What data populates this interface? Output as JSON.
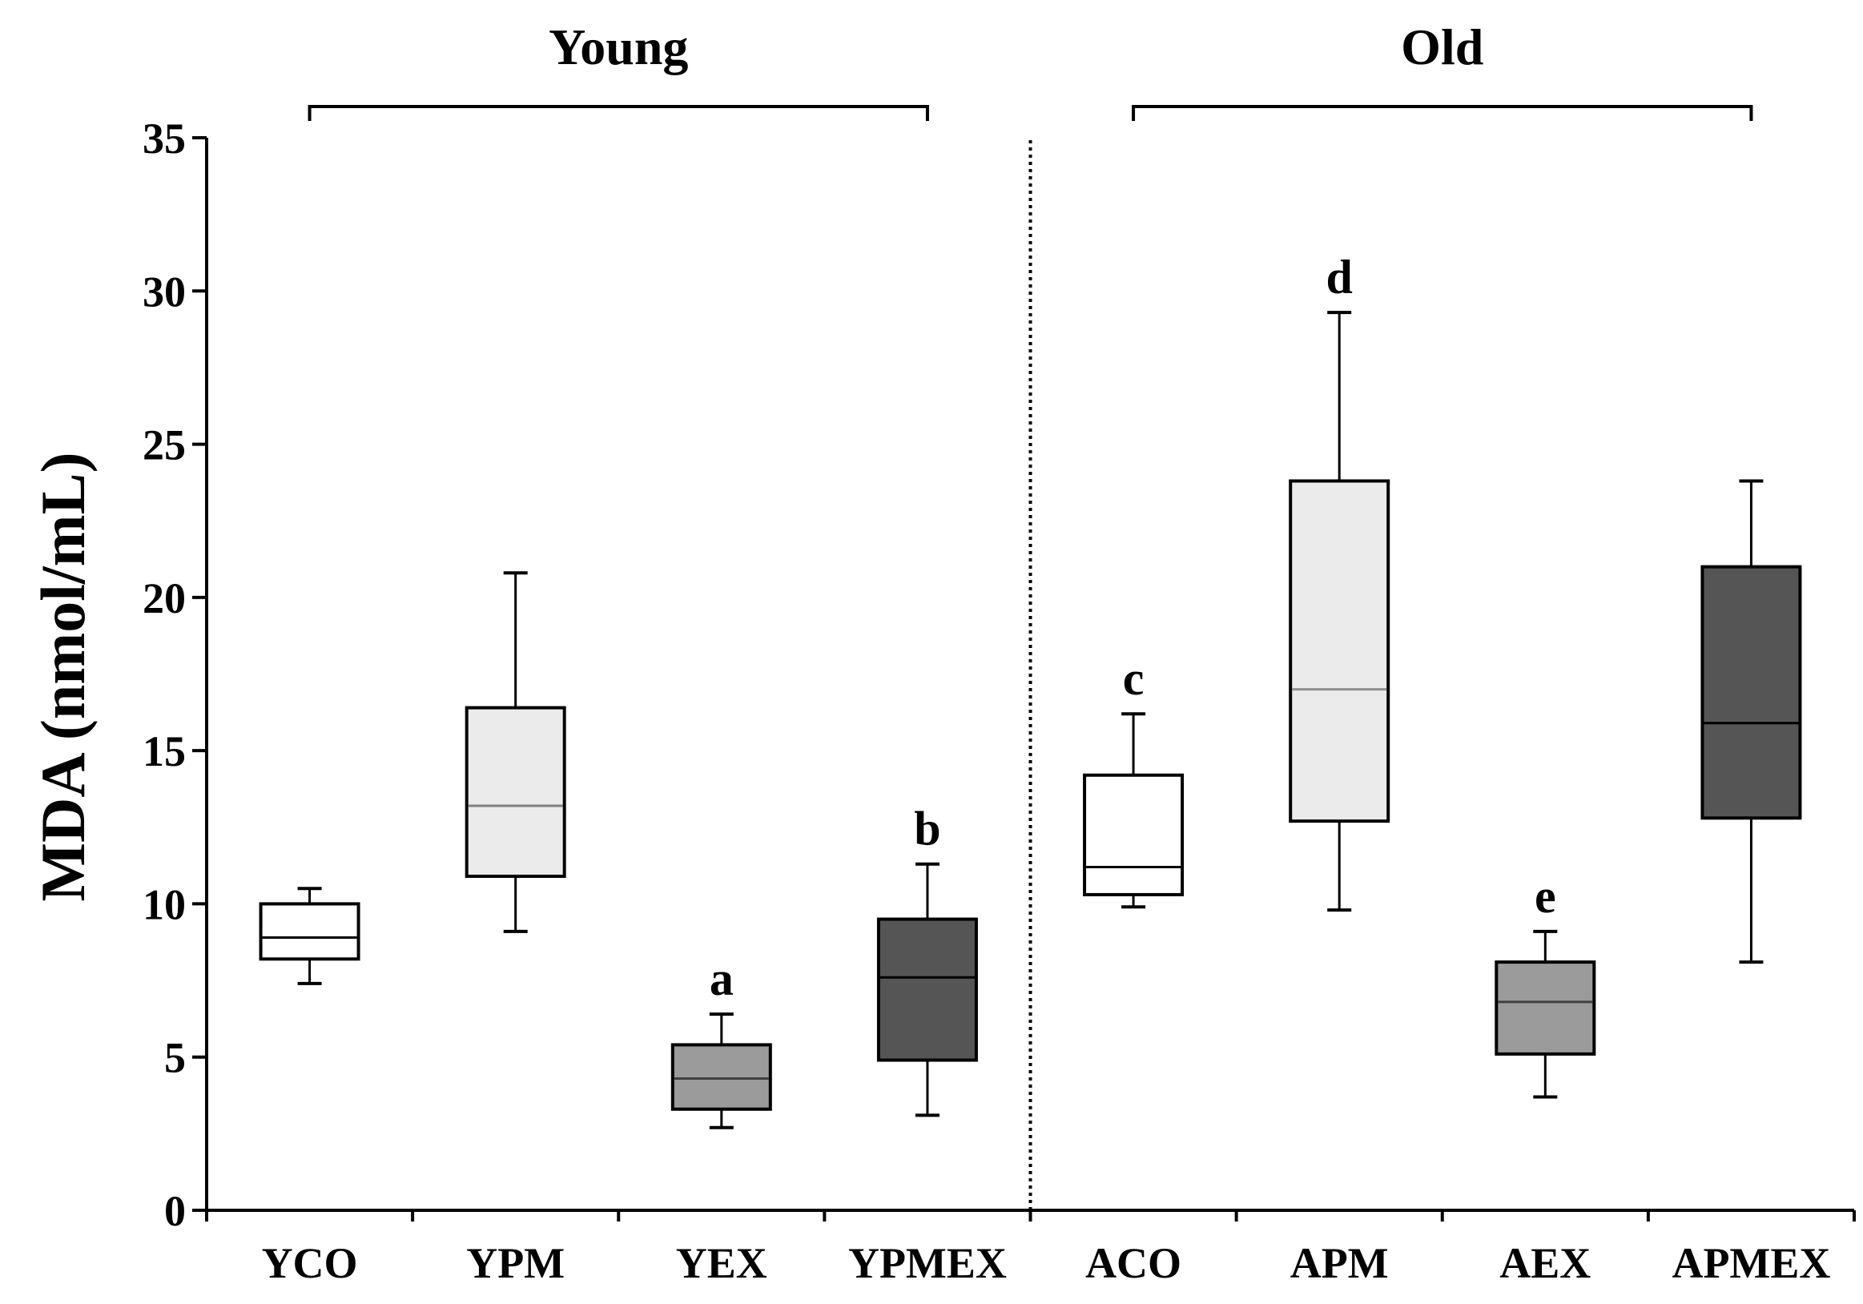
{
  "chart_data": {
    "type": "box",
    "ylabel": "MDA (nmol/mL)",
    "ylim": [
      0,
      35
    ],
    "yticks": [
      0,
      5,
      10,
      15,
      20,
      25,
      30,
      35
    ],
    "groups": [
      {
        "label": "Young",
        "from": 0,
        "to": 3
      },
      {
        "label": "Old",
        "from": 4,
        "to": 7
      }
    ],
    "categories": [
      "YCO",
      "YPM",
      "YEX",
      "YPMEX",
      "ACO",
      "APM",
      "AEX",
      "APMEX"
    ],
    "boxes": [
      {
        "category": "YCO",
        "min": 7.4,
        "q1": 8.2,
        "median": 8.9,
        "q3": 10.0,
        "max": 10.5,
        "fill": "#ffffff",
        "median_color": "#000000",
        "letter": ""
      },
      {
        "category": "YPM",
        "min": 9.1,
        "q1": 10.9,
        "median": 13.2,
        "q3": 16.4,
        "max": 20.8,
        "fill": "#ebebeb",
        "median_color": "#808080",
        "letter": ""
      },
      {
        "category": "YEX",
        "min": 2.7,
        "q1": 3.3,
        "median": 4.3,
        "q3": 5.4,
        "max": 6.4,
        "fill": "#9b9b9b",
        "median_color": "#404040",
        "letter": "a"
      },
      {
        "category": "YPMEX",
        "min": 3.1,
        "q1": 4.9,
        "median": 7.6,
        "q3": 9.5,
        "max": 11.3,
        "fill": "#555555",
        "median_color": "#000000",
        "letter": "b"
      },
      {
        "category": "ACO",
        "min": 9.9,
        "q1": 10.3,
        "median": 11.2,
        "q3": 14.2,
        "max": 16.2,
        "fill": "#ffffff",
        "median_color": "#000000",
        "letter": "c"
      },
      {
        "category": "APM",
        "min": 9.8,
        "q1": 12.7,
        "median": 17.0,
        "q3": 23.8,
        "max": 29.3,
        "fill": "#ebebeb",
        "median_color": "#909090",
        "letter": "d"
      },
      {
        "category": "AEX",
        "min": 3.7,
        "q1": 5.1,
        "median": 6.8,
        "q3": 8.1,
        "max": 9.1,
        "fill": "#9b9b9b",
        "median_color": "#404040",
        "letter": "e"
      },
      {
        "category": "APMEX",
        "min": 8.1,
        "q1": 12.8,
        "median": 15.9,
        "q3": 21.0,
        "max": 23.8,
        "fill": "#555555",
        "median_color": "#000000",
        "letter": ""
      }
    ],
    "separator_between": [
      3,
      4
    ],
    "grid": false,
    "legend": "none"
  }
}
